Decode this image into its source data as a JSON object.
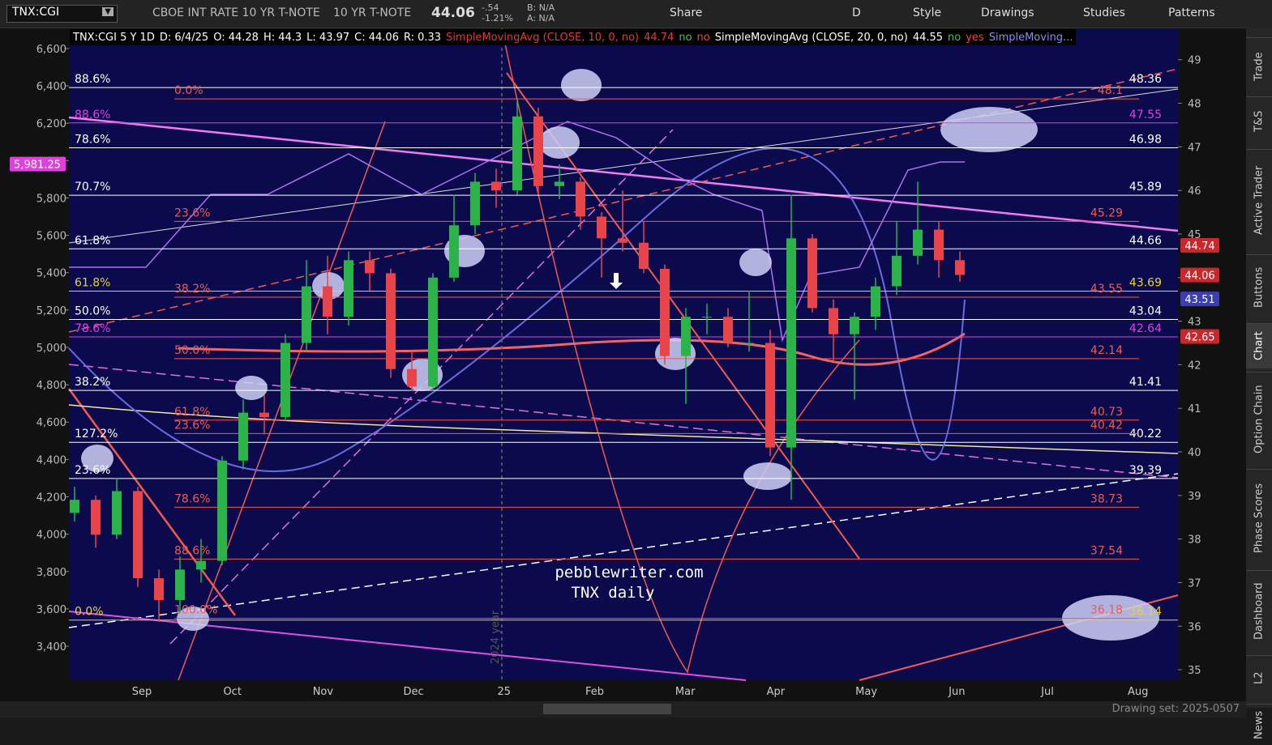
{
  "toolbar": {
    "symbol": "TNX:CGI",
    "description": "CBOE INT RATE 10 YR T-NOTE",
    "short_name": "10 YR T-NOTE",
    "last": 44.06,
    "change": "-.54",
    "change_pct": "-1.21%",
    "bid": "B: N/A",
    "ask": "A: N/A",
    "buttons": [
      "Share",
      "D",
      "Style",
      "Drawings",
      "Studies",
      "Patterns"
    ]
  },
  "header": {
    "items": [
      "TNX:CGI 5 Y 1D",
      "D: 6/4/25",
      "O: 44.28",
      "H: 44.3",
      "L: 43.97",
      "C: 44.06",
      "R: 0.33"
    ],
    "studies": [
      {
        "name": "SimpleMovingAvg (CLOSE, 10, 0, no)",
        "value": 44.74,
        "flags": [
          "no",
          "no"
        ],
        "color": "#e03a3a"
      },
      {
        "name": "SimpleMovingAvg (CLOSE, 20, 0, no)",
        "value": 44.55,
        "flags": [
          "no",
          "yes"
        ],
        "color": "#ffffff"
      },
      {
        "name": "SimpleMoving...",
        "color": "#8a8aff"
      }
    ]
  },
  "side_tabs": [
    "Trade",
    "T&S",
    "Active Trader",
    "Buttons",
    "Chart",
    "Option Chain",
    "Phase Scores",
    "Dashboard",
    "L2",
    "News"
  ],
  "chart_data": {
    "type": "candlestick",
    "open": [
      38.6,
      38.9,
      38.1,
      39.1,
      37.1,
      36.6,
      37.3,
      37.5,
      39.8,
      40.9,
      40.8,
      42.5,
      43.8,
      43.1,
      44.4,
      44.1,
      41.9,
      41.5,
      44.0,
      45.2,
      46.2,
      46.0,
      47.7,
      46.1,
      46.2,
      45.4,
      44.9,
      44.8,
      44.2,
      42.2,
      43.1,
      43.1,
      42.5,
      42.5,
      40.1,
      44.9,
      43.3,
      42.7,
      43.1,
      43.8,
      44.5,
      45.1,
      44.4
    ],
    "high": [
      39.2,
      39.0,
      39.4,
      39.2,
      37.3,
      37.6,
      38.0,
      39.9,
      41.2,
      41.3,
      42.7,
      44.4,
      44.5,
      44.6,
      44.6,
      44.2,
      42.3,
      44.1,
      45.9,
      46.4,
      46.5,
      48.1,
      47.9,
      46.6,
      46.3,
      45.5,
      46.0,
      45.3,
      44.3,
      43.3,
      43.4,
      43.3,
      43.7,
      42.8,
      45.9,
      45.0,
      43.5,
      43.2,
      44.0,
      45.3,
      46.2,
      45.3,
      44.6
    ],
    "low": [
      38.4,
      37.8,
      38.0,
      36.9,
      36.1,
      36.3,
      37.0,
      37.4,
      39.6,
      40.4,
      40.7,
      42.3,
      42.7,
      42.9,
      43.7,
      41.7,
      41.4,
      41.4,
      43.9,
      45.0,
      45.6,
      45.9,
      45.9,
      45.8,
      45.1,
      44.0,
      44.6,
      44.1,
      42.0,
      41.1,
      42.7,
      42.4,
      42.3,
      39.9,
      38.9,
      43.2,
      42.1,
      41.2,
      42.8,
      43.6,
      44.3,
      44.0,
      43.9
    ],
    "close": [
      38.9,
      38.1,
      39.1,
      37.1,
      36.6,
      37.3,
      37.5,
      39.8,
      40.9,
      40.8,
      42.5,
      43.8,
      43.1,
      44.4,
      44.1,
      41.9,
      41.5,
      44.0,
      45.2,
      46.2,
      46.0,
      47.7,
      46.1,
      46.2,
      45.4,
      44.9,
      44.8,
      44.2,
      42.2,
      43.1,
      43.1,
      42.5,
      42.5,
      40.1,
      44.9,
      43.3,
      42.7,
      43.1,
      43.8,
      44.5,
      45.1,
      44.4,
      44.06
    ],
    "up_color": "#2bb34a",
    "down_color": "#e8454a",
    "months": [
      "Sep",
      "Oct",
      "Nov",
      "Dec",
      "25",
      "Feb",
      "Mar",
      "Apr",
      "May",
      "Jun",
      "Jul",
      "Aug"
    ],
    "ylim": [
      34.76,
      49.72
    ],
    "yticks": [
      35,
      36,
      37,
      38,
      39,
      40,
      41,
      42,
      43,
      44,
      45,
      46,
      47,
      48,
      49
    ],
    "y2lim": [
      3218,
      6708
    ],
    "y2ticks": [
      {
        "value": 3400,
        "label": "3,400"
      },
      {
        "value": 3600,
        "label": "3,600"
      },
      {
        "value": 3800,
        "label": "3,800"
      },
      {
        "value": 4000,
        "label": "4,000"
      },
      {
        "value": 4200,
        "label": "4,200"
      },
      {
        "value": 4400,
        "label": "4,400"
      },
      {
        "value": 4600,
        "label": "4,600"
      },
      {
        "value": 4800,
        "label": "4,800"
      },
      {
        "value": 5000,
        "label": "5,000"
      },
      {
        "value": 5200,
        "label": "5,200"
      },
      {
        "value": 5400,
        "label": "5,400"
      },
      {
        "value": 5600,
        "label": "5,600"
      },
      {
        "value": 5800,
        "label": "5,800"
      },
      {
        "value": 6000,
        "label": "6,000"
      },
      {
        "value": 6200,
        "label": "6,200"
      },
      {
        "value": 6400,
        "label": "6,400"
      },
      {
        "value": 6600,
        "label": "6,600"
      }
    ],
    "levels": [
      {
        "value": 48.36,
        "ratio": "88.6%",
        "color": "#ffffff"
      },
      {
        "value": 46.98,
        "ratio": "78.6%",
        "color": "#ffffff"
      },
      {
        "value": 45.89,
        "ratio": "70.7%",
        "color": "#ffffff"
      },
      {
        "value": 44.66,
        "ratio": "61.8%",
        "color": "#ffffff"
      },
      {
        "value": 43.04,
        "ratio": "50.0%",
        "color": "#ffffff"
      },
      {
        "value": 41.41,
        "ratio": "38.2%",
        "color": "#ffffff"
      },
      {
        "value": 40.22,
        "ratio": "127.2%",
        "color": "#ffffff"
      },
      {
        "value": 39.39,
        "ratio": "23.6%",
        "color": "#ffffff"
      },
      {
        "value": 43.69,
        "ratio": "61.8%",
        "color": "#e8d23a"
      },
      {
        "value": 36.14,
        "ratio": "0.0%",
        "color": "#e8d23a"
      },
      {
        "value": 47.55,
        "ratio": "88.6%",
        "color": "#e040e0"
      },
      {
        "value": 42.64,
        "ratio": "78.6%",
        "color": "#e040e0"
      },
      {
        "value": 48.1,
        "ratio": "0.0%",
        "color": "#f05a50"
      },
      {
        "value": 45.29,
        "ratio": "23.6%",
        "color": "#f05a50"
      },
      {
        "value": 43.55,
        "ratio": "38.2%",
        "color": "#f05a50"
      },
      {
        "value": 42.14,
        "ratio": "50.0%",
        "color": "#f05a50"
      },
      {
        "value": 40.73,
        "ratio": "61.8%",
        "color": "#f05a50"
      },
      {
        "value": 40.42,
        "ratio": "23.6%",
        "color": "#f05a50"
      },
      {
        "value": 38.73,
        "ratio": "78.6%",
        "color": "#f05a50"
      },
      {
        "value": 37.54,
        "ratio": "88.6%",
        "color": "#f05a50"
      },
      {
        "value": 36.18,
        "ratio": "100.0%",
        "color": "#f05a50"
      }
    ],
    "price_tags": [
      {
        "value": 44.74,
        "color": "#c8282c"
      },
      {
        "value": 44.06,
        "color": "#c8282c"
      },
      {
        "value": 43.51,
        "color": "#3c3cb4"
      },
      {
        "value": 42.65,
        "color": "#c8282c"
      }
    ],
    "left_tag": {
      "value": 5981.25,
      "label": "5,981.25",
      "color": "#e040e0"
    },
    "watermark": [
      "pebblewriter.com",
      "TNX daily"
    ],
    "year_marker": "2024 year"
  },
  "footer": {
    "drawing_set": "Drawing set: 2025-0507"
  }
}
